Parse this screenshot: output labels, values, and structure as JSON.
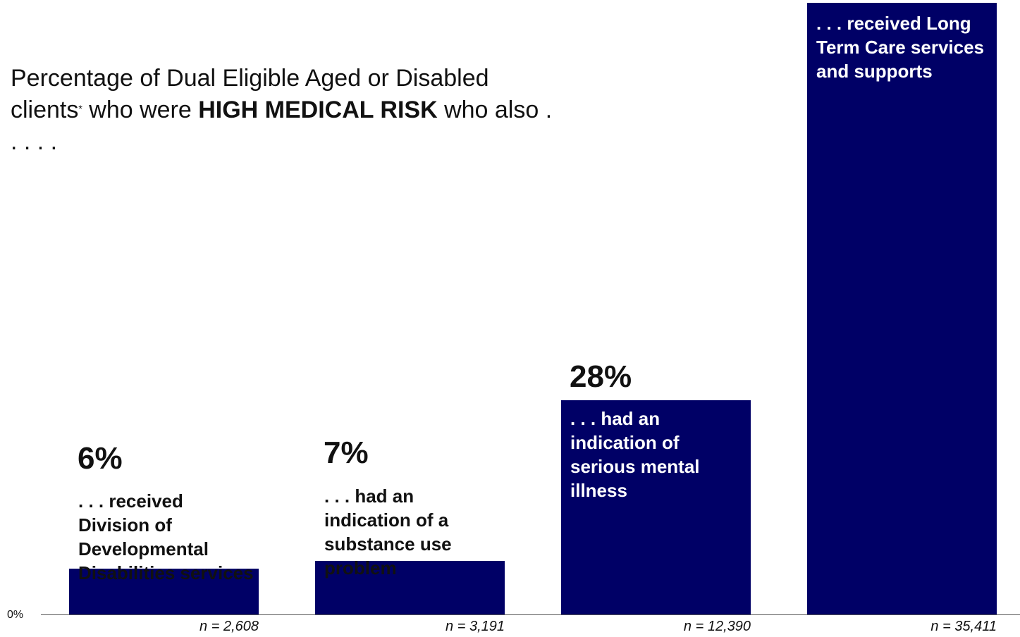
{
  "chart_data": {
    "type": "bar",
    "title_parts": {
      "pre": "Percentage of Dual Eligible Aged or Disabled clients",
      "asterisk": "*",
      "mid": " who were ",
      "bold": "HIGH MEDICAL RISK",
      "post": " who also . . . . ."
    },
    "y_zero_label": "0%",
    "ylim": [
      0,
      100
    ],
    "bars": [
      {
        "pct_label": "6%",
        "value": 6,
        "description": ". . . received Division of Developmental Disabilities services",
        "n_label": "n = 2,608"
      },
      {
        "pct_label": "7%",
        "value": 7,
        "description": ". . . had an indication of a substance use problem",
        "n_label": "n = 3,191"
      },
      {
        "pct_label": "28%",
        "value": 28,
        "description": ". . . had an indication of serious mental illness",
        "n_label": "n = 12,390"
      },
      {
        "pct_label": "",
        "value": 80,
        "description": ". . . received Long Term Care services and supports",
        "n_label": "n = 35,411"
      }
    ],
    "colors": {
      "bar": "#000066"
    }
  }
}
